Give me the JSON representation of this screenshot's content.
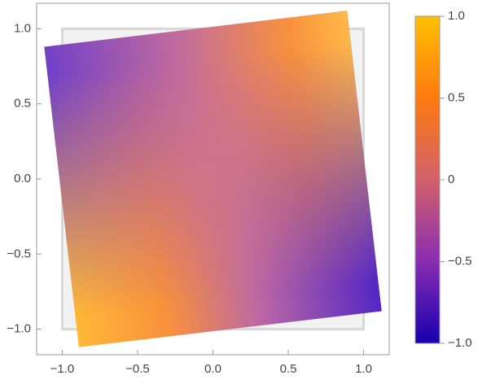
{
  "chart_data": {
    "type": "polygon-density",
    "xlim": [
      -1.17,
      1.17
    ],
    "ylim": [
      -1.17,
      1.17
    ],
    "xticks": [
      {
        "value": -1,
        "label": "−1.0"
      },
      {
        "value": -0.5,
        "label": "−0.5"
      },
      {
        "value": 0,
        "label": "0.0"
      },
      {
        "value": 0.5,
        "label": "0.5"
      },
      {
        "value": 1,
        "label": "1.0"
      }
    ],
    "yticks": [
      {
        "value": -1,
        "label": "−1.0"
      },
      {
        "value": -0.5,
        "label": "−0.5"
      },
      {
        "value": 0,
        "label": "0.0"
      },
      {
        "value": 0.5,
        "label": "0.5"
      },
      {
        "value": 1,
        "label": "1.0"
      }
    ],
    "reference_square": {
      "x": [
        -1,
        1,
        1,
        -1
      ],
      "y": [
        1,
        1,
        -1,
        -1
      ]
    },
    "polygon": {
      "x": [
        -1.12,
        0.89,
        1.12,
        -0.89
      ],
      "y": [
        0.88,
        1.12,
        -0.88,
        -1.12
      ]
    },
    "colorbar": {
      "lim": [
        -1,
        1
      ],
      "ticks": [
        {
          "value": 1,
          "label": "1.0"
        },
        0.5,
        0,
        {
          "value": -0.5,
          "label": "−0.5"
        },
        {
          "value": -1,
          "label": "−1.0"
        }
      ]
    }
  }
}
